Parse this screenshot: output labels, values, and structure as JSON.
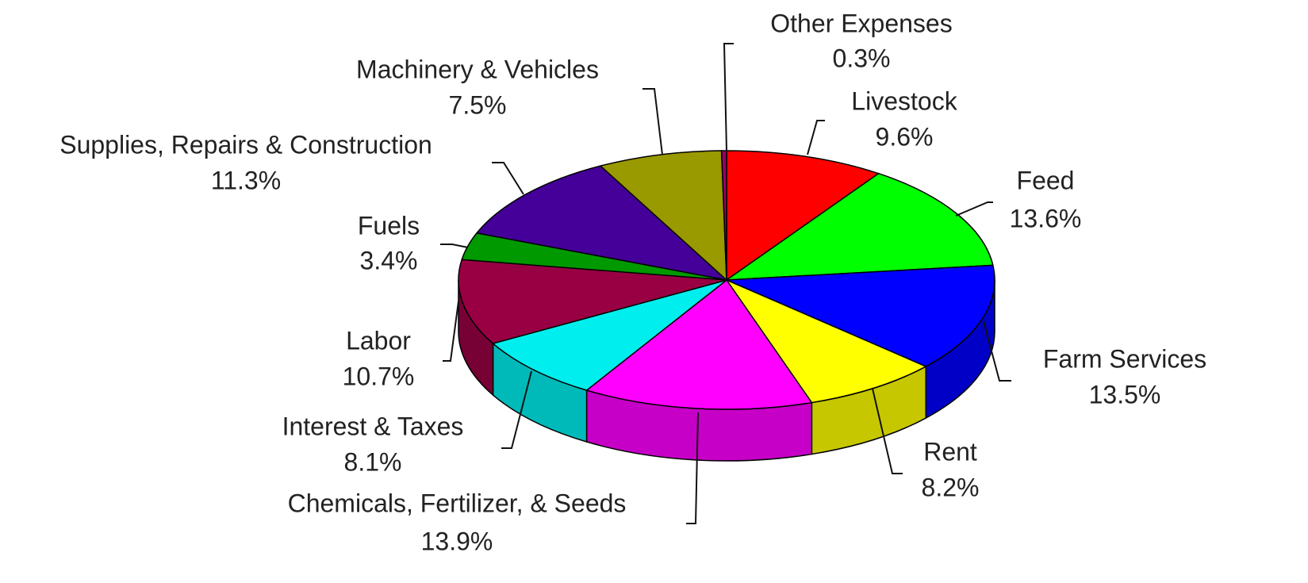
{
  "chart_data": {
    "type": "pie3d",
    "categories": [
      "Livestock",
      "Feed",
      "Farm Services",
      "Rent",
      "Chemicals, Fertilizer, & Seeds",
      "Interest & Taxes",
      "Labor",
      "Fuels",
      "Supplies, Repairs & Construction",
      "Machinery & Vehicles",
      "Other Expenses"
    ],
    "values": [
      9.6,
      13.6,
      13.5,
      8.2,
      13.9,
      8.1,
      10.7,
      3.4,
      11.3,
      7.5,
      0.3
    ],
    "value_labels": [
      "9.6%",
      "13.6%",
      "13.5%",
      "8.2%",
      "13.9%",
      "8.1%",
      "10.7%",
      "3.4%",
      "11.3%",
      "7.5%",
      "0.3%"
    ],
    "colors": [
      "#ff0000",
      "#00ff00",
      "#0000ff",
      "#ffff00",
      "#ff00ff",
      "#00eeee",
      "#990044",
      "#009900",
      "#440099",
      "#999900",
      "#990066"
    ]
  }
}
